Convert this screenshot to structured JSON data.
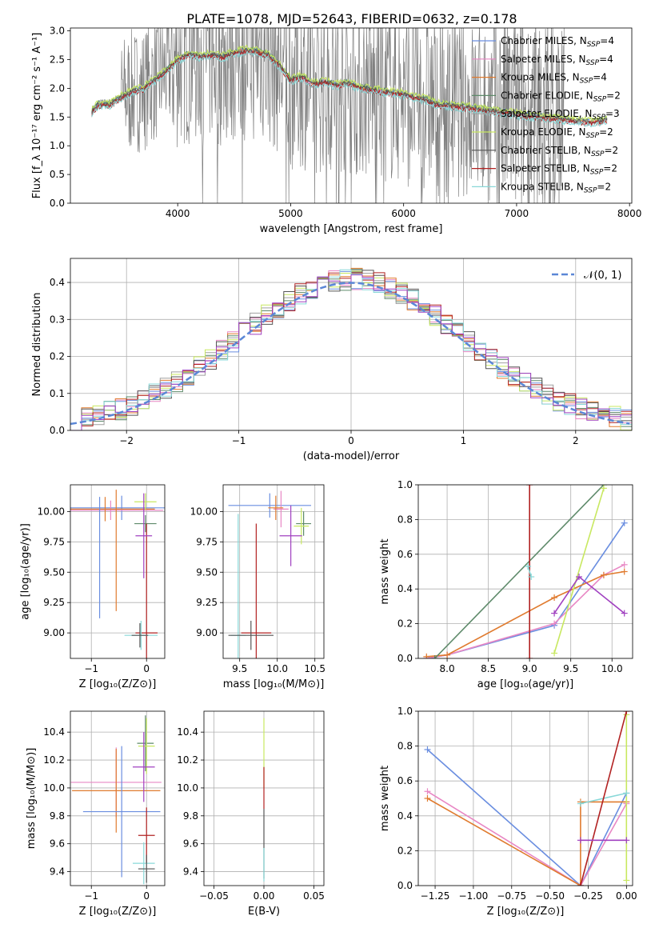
{
  "title": "PLATE=1078, MJD=52643, FIBERID=0632, z=0.178",
  "colors": {
    "data": "#808080",
    "series": [
      "#6a8ee0",
      "#e887c4",
      "#e07b2f",
      "#5e8a6a",
      "#a0a0a0",
      "#c8e860",
      "#555555",
      "#b22222",
      "#88d8d8"
    ],
    "purple": "#a040c0",
    "grid": "#b0b0b0"
  },
  "chart_data": [
    {
      "type": "line",
      "id": "spectrum",
      "xlabel": "wavelength [Angstrom, rest frame]",
      "ylabel": "Flux [f_λ 10⁻¹⁷ erg cm⁻² s⁻¹ A⁻¹]",
      "xlim": [
        3050,
        8020
      ],
      "ylim": [
        0,
        3.05
      ],
      "xticks": [
        4000,
        5000,
        6000,
        7000,
        8000
      ],
      "yticks": [
        0.0,
        0.5,
        1.0,
        1.5,
        2.0,
        2.5,
        3.0
      ],
      "grid": false,
      "legend_position": "top-right",
      "legend": [
        {
          "name": "Chabrier MILES, N",
          "sub": "SSP",
          "val": "=4"
        },
        {
          "name": "Salpeter MILES, N",
          "sub": "SSP",
          "val": "=4"
        },
        {
          "name": "Kroupa MILES, N",
          "sub": "SSP",
          "val": "=4"
        },
        {
          "name": "Chabrier ELODIE, N",
          "sub": "SSP",
          "val": "=2"
        },
        {
          "name": "Salpeter ELODIE, N",
          "sub": "SSP",
          "val": "=3"
        },
        {
          "name": "Kroupa ELODIE, N",
          "sub": "SSP",
          "val": "=2"
        },
        {
          "name": "Chabrier STELIB, N",
          "sub": "SSP",
          "val": "=2"
        },
        {
          "name": "Salpeter STELIB, N",
          "sub": "SSP",
          "val": "=2"
        },
        {
          "name": "Kroupa STELIB, N",
          "sub": "SSP",
          "val": "=2"
        }
      ],
      "model_curve": {
        "x": [
          3240,
          3300,
          3400,
          3500,
          3600,
          3700,
          3800,
          3900,
          4000,
          4100,
          4200,
          4300,
          4400,
          4500,
          4600,
          4700,
          4800,
          4900,
          5000,
          5100,
          5200,
          5300,
          5400,
          5500,
          5600,
          5700,
          5800,
          5900,
          6000,
          6100,
          6200,
          6300,
          6400,
          6500,
          6600,
          6700,
          6800,
          6900,
          7000,
          7100,
          7200,
          7300,
          7400,
          7500,
          7600,
          7700,
          7800
        ],
        "y": [
          1.6,
          1.72,
          1.72,
          1.85,
          1.95,
          2.0,
          2.15,
          2.3,
          2.5,
          2.6,
          2.55,
          2.58,
          2.55,
          2.62,
          2.66,
          2.64,
          2.58,
          2.4,
          2.15,
          2.2,
          2.08,
          2.12,
          2.05,
          2.1,
          2.02,
          1.98,
          1.95,
          1.92,
          1.9,
          1.84,
          1.8,
          1.72,
          1.7,
          1.68,
          1.66,
          1.63,
          1.6,
          1.58,
          1.55,
          1.52,
          1.5,
          1.48,
          1.46,
          1.44,
          1.42,
          1.42,
          1.45
        ]
      }
    },
    {
      "type": "line",
      "id": "residuals",
      "xlabel": "(data-model)/error",
      "ylabel": "Normed distribution",
      "xlim": [
        -2.5,
        2.5
      ],
      "ylim": [
        0,
        0.465
      ],
      "xticks": [
        -2,
        -1,
        0,
        1,
        2
      ],
      "yticks": [
        0.0,
        0.1,
        0.2,
        0.3,
        0.4
      ],
      "grid": true,
      "legend_position": "top-right",
      "legend_label": "𝒩(0, 1)",
      "normal": {
        "mean": 0,
        "std": 1
      }
    },
    {
      "type": "scatter",
      "id": "age_vs_Z",
      "xlabel": "Z [log₁₀(Z/Z⊙)]",
      "ylabel": "age  [log₁₀(age/yr)]",
      "xlim": [
        -1.38,
        0.33
      ],
      "ylim": [
        8.79,
        10.22
      ],
      "xticks": [
        -1,
        0
      ],
      "yticks": [
        9.0,
        9.25,
        9.5,
        9.75,
        10.0
      ],
      "grid": true,
      "errorbars": [
        {
          "color": 0,
          "x": -0.45,
          "xerr": 0.95,
          "y": 10.03,
          "yerr": 0.1
        },
        {
          "color": 1,
          "x": -0.65,
          "xerr": 0.95,
          "y": 10.01,
          "yerr": 0.08
        },
        {
          "color": 2,
          "x": -0.75,
          "xerr": 0.9,
          "y": 10.02,
          "yerr": 0.1
        },
        {
          "color": 3,
          "x": -0.02,
          "xerr": 0.2,
          "y": 9.9,
          "yerr": 0.07
        },
        {
          "color": 5,
          "x": -0.02,
          "xerr": 0.2,
          "y": 10.08,
          "yerr": 0.07
        },
        {
          "color": 7,
          "x": 0.0,
          "xerr": 0.2,
          "y": 9.0,
          "yerr": 0.9
        },
        {
          "color": 8,
          "x": -0.1,
          "xerr": 0.3,
          "y": 8.98,
          "yerr": 0.12
        },
        {
          "color": 6,
          "x": -0.12,
          "xerr": 0.15,
          "y": 8.98,
          "yerr": 0.1
        },
        {
          "color": 0,
          "x": -0.85,
          "xerr": 0.0,
          "y": 9.62,
          "yerr": 0.5
        },
        {
          "color": 2,
          "x": -0.55,
          "xerr": 0.0,
          "y": 9.68,
          "yerr": 0.5
        },
        {
          "color": "purple",
          "x": -0.05,
          "xerr": 0.15,
          "y": 9.8,
          "yerr": 0.35
        }
      ]
    },
    {
      "type": "scatter",
      "id": "age_vs_mass",
      "xlabel": "mass [log₁₀(M/M⊙)]",
      "ylabel": "",
      "xlim": [
        9.28,
        10.62
      ],
      "ylim": [
        8.79,
        10.22
      ],
      "xticks": [
        9.5,
        10.0,
        10.5
      ],
      "yticks": [
        9.0,
        9.25,
        9.5,
        9.75,
        10.0
      ],
      "grid": true,
      "errorbars": [
        {
          "color": 0,
          "x": 9.9,
          "xerr": 0.55,
          "y": 10.05,
          "yerr": 0.1
        },
        {
          "color": 1,
          "x": 10.05,
          "xerr": 0.1,
          "y": 10.02,
          "yerr": 0.15
        },
        {
          "color": 2,
          "x": 9.98,
          "xerr": 0.1,
          "y": 10.03,
          "yerr": 0.1
        },
        {
          "color": 3,
          "x": 10.35,
          "xerr": 0.1,
          "y": 9.9,
          "yerr": 0.1
        },
        {
          "color": 5,
          "x": 10.32,
          "xerr": 0.1,
          "y": 9.88,
          "yerr": 0.15
        },
        {
          "color": 7,
          "x": 9.72,
          "xerr": 0.2,
          "y": 9.0,
          "yerr": 0.9
        },
        {
          "color": 8,
          "x": 9.48,
          "xerr": 0.1,
          "y": 8.98,
          "yerr": 1.0
        },
        {
          "color": 6,
          "x": 9.65,
          "xerr": 0.3,
          "y": 8.98,
          "yerr": 0.12
        },
        {
          "color": "purple",
          "x": 10.18,
          "xerr": 0.15,
          "y": 9.8,
          "yerr": 0.25
        }
      ]
    },
    {
      "type": "line",
      "id": "weight_vs_age",
      "xlabel": "age  [log₁₀(age/yr)]",
      "ylabel": "mass weight",
      "xlim": [
        7.65,
        10.25
      ],
      "ylim": [
        0,
        1
      ],
      "xticks": [
        8.0,
        8.5,
        9.0,
        9.5,
        10.0
      ],
      "yticks": [
        0.0,
        0.2,
        0.4,
        0.6,
        0.8,
        1.0
      ],
      "grid": true,
      "lines": [
        {
          "color": 0,
          "x": [
            7.75,
            8.0,
            9.3,
            10.15
          ],
          "y": [
            0.0,
            0.02,
            0.19,
            0.78
          ]
        },
        {
          "color": 1,
          "x": [
            7.75,
            8.0,
            9.3,
            9.9,
            10.15
          ],
          "y": [
            0.0,
            0.02,
            0.2,
            0.48,
            0.54
          ]
        },
        {
          "color": 2,
          "x": [
            7.75,
            8.0,
            9.3,
            9.9,
            10.15
          ],
          "y": [
            0.01,
            0.02,
            0.35,
            0.48,
            0.5
          ]
        },
        {
          "color": 3,
          "x": [
            7.85,
            9.9
          ],
          "y": [
            0.0,
            1.0
          ]
        },
        {
          "color": 5,
          "x": [
            9.3,
            9.9
          ],
          "y": [
            0.03,
            0.98
          ]
        },
        {
          "color": 7,
          "x": [
            9.0,
            9.0
          ],
          "y": [
            0.0,
            1.0
          ]
        },
        {
          "color": 8,
          "x": [
            8.98,
            9.02
          ],
          "y": [
            0.53,
            0.47
          ]
        },
        {
          "color": "purple",
          "x": [
            9.3,
            9.6,
            10.15
          ],
          "y": [
            0.26,
            0.47,
            0.26
          ]
        }
      ]
    },
    {
      "type": "scatter",
      "id": "mass_vs_Z",
      "xlabel": "Z [log₁₀(Z/Z⊙)]",
      "ylabel": "mass [log₁₀(M/M⊙)]",
      "xlim": [
        -1.38,
        0.33
      ],
      "ylim": [
        9.3,
        10.55
      ],
      "xticks": [
        -1,
        0
      ],
      "yticks": [
        9.4,
        9.6,
        9.8,
        10.0,
        10.2,
        10.4
      ],
      "grid": true,
      "errorbars": [
        {
          "color": 1,
          "x": -0.55,
          "xerr": 0.82,
          "y": 10.04,
          "yerr": 0.25
        },
        {
          "color": 2,
          "x": -0.55,
          "xerr": 0.8,
          "y": 9.98,
          "yerr": 0.3
        },
        {
          "color": 0,
          "x": -0.45,
          "xerr": 0.7,
          "y": 9.83,
          "yerr": 0.47
        },
        {
          "color": 3,
          "x": -0.02,
          "xerr": 0.15,
          "y": 10.32,
          "yerr": 0.2
        },
        {
          "color": 5,
          "x": 0.0,
          "xerr": 0.15,
          "y": 10.3,
          "yerr": 0.2
        },
        {
          "color": "purple",
          "x": -0.05,
          "xerr": 0.2,
          "y": 10.15,
          "yerr": 0.25
        },
        {
          "color": 7,
          "x": 0.0,
          "xerr": 0.15,
          "y": 9.66,
          "yerr": 0.2
        },
        {
          "color": 8,
          "x": -0.05,
          "xerr": 0.2,
          "y": 9.46,
          "yerr": 0.15
        },
        {
          "color": 6,
          "x": 0.0,
          "xerr": 0.15,
          "y": 9.42,
          "yerr": 0.1
        }
      ]
    },
    {
      "type": "scatter",
      "id": "mass_vs_ebv",
      "xlabel": "E(B-V)",
      "ylabel": "",
      "xlim": [
        -0.06,
        0.06
      ],
      "ylim": [
        9.3,
        10.55
      ],
      "xticks": [
        -0.05,
        0.0,
        0.05
      ],
      "yticks": [
        9.4,
        9.6,
        9.8,
        10.0,
        10.2,
        10.4
      ],
      "grid": true,
      "errorbars": [
        {
          "color": 5,
          "x": 0.0,
          "xerr": 0.0,
          "y": 10.25,
          "yerr": 0.25
        },
        {
          "color": 7,
          "x": 0.0,
          "xerr": 0.0,
          "y": 10.0,
          "yerr": 0.15
        },
        {
          "color": 6,
          "x": 0.0,
          "xerr": 0.0,
          "y": 9.6,
          "yerr": 0.25
        },
        {
          "color": 8,
          "x": 0.0,
          "xerr": 0.0,
          "y": 9.45,
          "yerr": 0.12
        }
      ]
    },
    {
      "type": "line",
      "id": "weight_vs_Z",
      "xlabel": "Z [log₁₀(Z/Z⊙)]",
      "ylabel": "mass weight",
      "xlim": [
        -1.36,
        0.04
      ],
      "ylim": [
        0,
        1
      ],
      "xticks": [
        -1.25,
        -1.0,
        -0.75,
        -0.5,
        -0.25,
        0.0
      ],
      "yticks": [
        0.0,
        0.2,
        0.4,
        0.6,
        0.8,
        1.0
      ],
      "grid": true,
      "lines": [
        {
          "color": 0,
          "x": [
            -1.3,
            -0.3,
            0.0
          ],
          "y": [
            0.78,
            0.0,
            0.53
          ]
        },
        {
          "color": 1,
          "x": [
            -1.3,
            -0.3,
            0.0
          ],
          "y": [
            0.54,
            0.0,
            0.47
          ]
        },
        {
          "color": 2,
          "x": [
            -1.3,
            -0.3,
            -0.3,
            0.0
          ],
          "y": [
            0.5,
            0.0,
            0.48,
            0.48
          ]
        },
        {
          "color": 5,
          "x": [
            0.0,
            0.0
          ],
          "y": [
            0.03,
            0.98
          ]
        },
        {
          "color": 8,
          "x": [
            -0.3,
            0.0
          ],
          "y": [
            0.47,
            0.53
          ]
        },
        {
          "color": 7,
          "x": [
            -0.3,
            0.0
          ],
          "y": [
            0.0,
            1.0
          ]
        },
        {
          "color": "purple",
          "x": [
            -0.3,
            0.0
          ],
          "y": [
            0.26,
            0.26
          ]
        }
      ]
    }
  ]
}
